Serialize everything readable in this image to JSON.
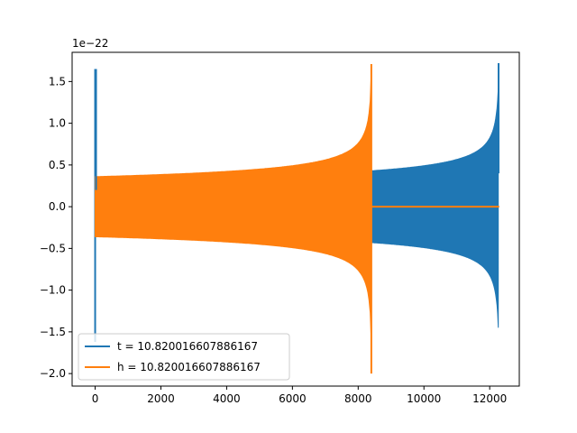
{
  "chart_data": {
    "type": "line",
    "title": "",
    "xlabel": "",
    "ylabel": "",
    "y_offset_label": "1e−22",
    "xlim": [
      -700,
      12900
    ],
    "ylim": [
      -2.15,
      1.85
    ],
    "x_ticks": [
      0,
      2000,
      4000,
      6000,
      8000,
      10000,
      12000
    ],
    "x_tick_labels": [
      "0",
      "2000",
      "4000",
      "6000",
      "8000",
      "10000",
      "12000"
    ],
    "y_ticks": [
      1.5,
      1.0,
      0.5,
      0.0,
      -0.5,
      -1.0,
      -1.5,
      -2.0
    ],
    "y_tick_labels": [
      "1.5",
      "1.0",
      "0.5",
      "0.0",
      "−0.5",
      "−1.0",
      "−1.5",
      "−2.0"
    ],
    "grid": false,
    "legend_position": "lower-left",
    "series": [
      {
        "name": "t = 10.820016607886167",
        "color": "#1f77b4",
        "description_points": {
          "spike_x": 0,
          "spike_max": 1.65,
          "spike_min": -1.62,
          "oscillation_start_x": 8400,
          "oscillation_end_x": 12290,
          "envelope_start": 0.43,
          "peak_max": 1.72,
          "peak_min": -1.51
        }
      },
      {
        "name": "h = 10.820016607886167",
        "color": "#ff7f0e",
        "description_points": {
          "oscillation_start_x": 0,
          "oscillation_end_x": 8400,
          "envelope_start": 0.36,
          "peak_max": 1.71,
          "peak_min": -2.0,
          "flat_end_x": 12290,
          "flat_value": 0.0
        }
      }
    ]
  }
}
